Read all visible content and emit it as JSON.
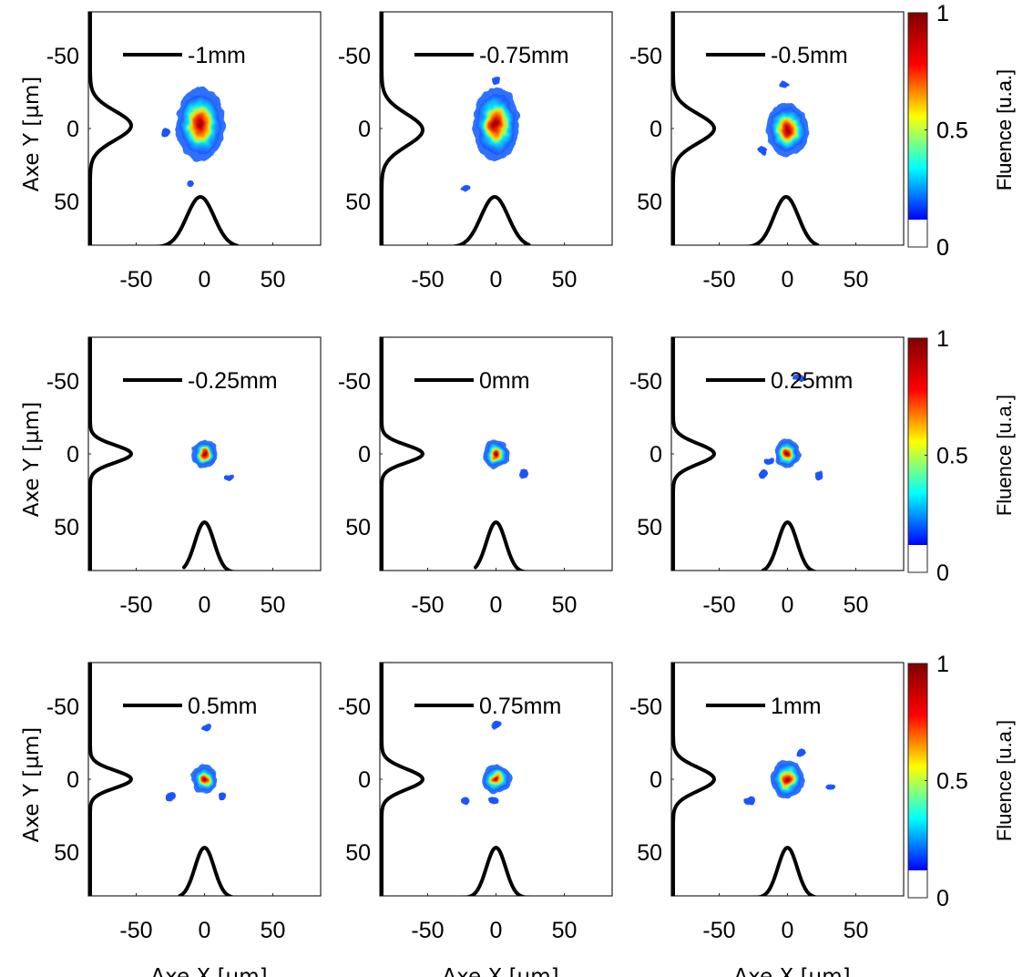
{
  "figure": {
    "x_axis_label": "Axe X [µm]",
    "y_axis_label": "Axe Y [µm]",
    "colorbar_label": "Fluence [u.a.]",
    "colorbar_ticks": [
      "0",
      "0.5",
      "1"
    ]
  },
  "chart_data": [
    {
      "type": "heatmap",
      "label": "-1mm",
      "xlim": [
        -85,
        85
      ],
      "ylim": [
        -80,
        80
      ],
      "xticks": [
        -50,
        0,
        50
      ],
      "yticks": [
        -50,
        0,
        50
      ],
      "peak": [
        -3,
        -3
      ],
      "beam_width_um": [
        30,
        42
      ],
      "xlabel": "",
      "ylabel": "Axe Y [µm]",
      "x_profile": {
        "center": -3,
        "width": 10,
        "floor": -35,
        "ceil": 24
      },
      "y_profile": {
        "center": -2,
        "width": 10,
        "floor": -62,
        "ceil": 78
      },
      "islands": [
        [
          -10,
          38
        ],
        [
          -28,
          3
        ]
      ],
      "colorbar": {
        "label": "Fluence [u.a.]",
        "range": [
          0,
          1
        ],
        "ticks": [
          0,
          0.5,
          1
        ]
      }
    },
    {
      "type": "heatmap",
      "label": "-0.75mm",
      "xlim": [
        -85,
        85
      ],
      "ylim": [
        -80,
        80
      ],
      "xticks": [
        -50,
        0,
        50
      ],
      "yticks": [
        -50,
        0,
        50
      ],
      "peak": [
        0,
        -3
      ],
      "beam_width_um": [
        28,
        42
      ],
      "xlabel": "",
      "ylabel": "",
      "x_profile": {
        "center": -1,
        "width": 10,
        "floor": -30,
        "ceil": 24
      },
      "y_profile": {
        "center": 1,
        "width": 11,
        "floor": -72,
        "ceil": 78
      },
      "islands": [
        [
          0,
          -33
        ],
        [
          -22,
          41
        ]
      ]
    },
    {
      "type": "heatmap",
      "label": "-0.5mm",
      "xlim": [
        -85,
        85
      ],
      "ylim": [
        -80,
        80
      ],
      "xticks": [
        -50,
        0,
        50
      ],
      "yticks": [
        -50,
        0,
        50
      ],
      "peak": [
        0,
        1
      ],
      "beam_width_um": [
        26,
        30
      ],
      "xlabel": "",
      "ylabel": "",
      "x_profile": {
        "center": -1,
        "width": 9,
        "floor": -30,
        "ceil": 22
      },
      "y_profile": {
        "center": 0,
        "width": 10,
        "floor": -72,
        "ceil": 78
      },
      "islands": [
        [
          -3,
          -30
        ],
        [
          -18,
          15
        ]
      ],
      "colorbar": {
        "label": "Fluence [u.a.]",
        "range": [
          0,
          1
        ],
        "ticks": [
          0,
          0.5,
          1
        ]
      }
    },
    {
      "type": "heatmap",
      "label": "-0.25mm",
      "xlim": [
        -85,
        85
      ],
      "ylim": [
        -80,
        80
      ],
      "xticks": [
        -50,
        0,
        50
      ],
      "yticks": [
        -50,
        0,
        50
      ],
      "peak": [
        0,
        0
      ],
      "beam_width_um": [
        16,
        16
      ],
      "xlabel": "",
      "ylabel": "Axe Y [µm]",
      "x_profile": {
        "center": 0,
        "width": 7,
        "floor": -15,
        "ceil": 22
      },
      "y_profile": {
        "center": 0,
        "width": 6,
        "floor": -55,
        "ceil": 55
      },
      "islands": [
        [
          18,
          16
        ]
      ]
    },
    {
      "type": "heatmap",
      "label": "0mm",
      "xlim": [
        -85,
        85
      ],
      "ylim": [
        -80,
        80
      ],
      "xticks": [
        -50,
        0,
        50
      ],
      "yticks": [
        -50,
        0,
        50
      ],
      "peak": [
        0,
        0
      ],
      "beam_width_um": [
        16,
        16
      ],
      "xlabel": "",
      "ylabel": "",
      "x_profile": {
        "center": 0,
        "width": 7,
        "floor": -15,
        "ceil": 22
      },
      "y_profile": {
        "center": 0,
        "width": 6,
        "floor": -62,
        "ceil": 62
      },
      "islands": [
        [
          20,
          14
        ]
      ]
    },
    {
      "type": "heatmap",
      "label": "0.25mm",
      "xlim": [
        -85,
        85
      ],
      "ylim": [
        -80,
        80
      ],
      "xticks": [
        -50,
        0,
        50
      ],
      "yticks": [
        -50,
        0,
        50
      ],
      "peak": [
        0,
        0
      ],
      "beam_width_um": [
        16,
        16
      ],
      "xlabel": "",
      "ylabel": "",
      "x_profile": {
        "center": 0,
        "width": 7,
        "floor": -18,
        "ceil": 20
      },
      "y_profile": {
        "center": 0,
        "width": 7,
        "floor": -62,
        "ceil": 62
      },
      "islands": [
        [
          8,
          -52
        ],
        [
          23,
          15
        ],
        [
          -18,
          14
        ],
        [
          -13,
          5
        ]
      ],
      "colorbar": {
        "label": "Fluence [u.a.]",
        "range": [
          0,
          1
        ],
        "ticks": [
          0,
          0.5,
          1
        ]
      }
    },
    {
      "type": "heatmap",
      "label": "0.5mm",
      "xlim": [
        -85,
        85
      ],
      "ylim": [
        -80,
        80
      ],
      "xticks": [
        -50,
        0,
        50
      ],
      "yticks": [
        -50,
        0,
        50
      ],
      "peak": [
        0,
        0
      ],
      "beam_width_um": [
        16,
        16
      ],
      "xlabel": "Axe X [µm]",
      "ylabel": "Axe Y [µm]",
      "x_profile": {
        "center": 0,
        "width": 7,
        "floor": -18,
        "ceil": 20
      },
      "y_profile": {
        "center": 0,
        "width": 6,
        "floor": -50,
        "ceil": 60
      },
      "islands": [
        [
          1,
          -35
        ],
        [
          -25,
          12
        ],
        [
          13,
          12
        ]
      ]
    },
    {
      "type": "heatmap",
      "label": "0.75mm",
      "xlim": [
        -85,
        85
      ],
      "ylim": [
        -80,
        80
      ],
      "xticks": [
        -50,
        0,
        50
      ],
      "yticks": [
        -50,
        0,
        50
      ],
      "peak": [
        0,
        0
      ],
      "beam_width_um": [
        18,
        16
      ],
      "xlabel": "Axe X [µm]",
      "ylabel": "",
      "x_profile": {
        "center": 0,
        "width": 7,
        "floor": -28,
        "ceil": 32
      },
      "y_profile": {
        "center": 0,
        "width": 7,
        "floor": -62,
        "ceil": 62
      },
      "islands": [
        [
          0,
          -37
        ],
        [
          -22,
          15
        ],
        [
          -2,
          14
        ]
      ]
    },
    {
      "type": "heatmap",
      "label": "1mm",
      "xlim": [
        -85,
        85
      ],
      "ylim": [
        -80,
        80
      ],
      "xticks": [
        -50,
        0,
        50
      ],
      "yticks": [
        -50,
        0,
        50
      ],
      "peak": [
        0,
        0
      ],
      "beam_width_um": [
        20,
        22
      ],
      "xlabel": "Axe X [µm]",
      "ylabel": "",
      "x_profile": {
        "center": 0,
        "width": 7,
        "floor": -30,
        "ceil": 20
      },
      "y_profile": {
        "center": 0,
        "width": 8,
        "floor": -62,
        "ceil": 62
      },
      "islands": [
        [
          -28,
          15
        ],
        [
          32,
          5
        ],
        [
          10,
          -18
        ]
      ],
      "colorbar": {
        "label": "Fluence [u.a.]",
        "range": [
          0,
          1
        ],
        "ticks": [
          0,
          0.5,
          1
        ]
      }
    }
  ]
}
